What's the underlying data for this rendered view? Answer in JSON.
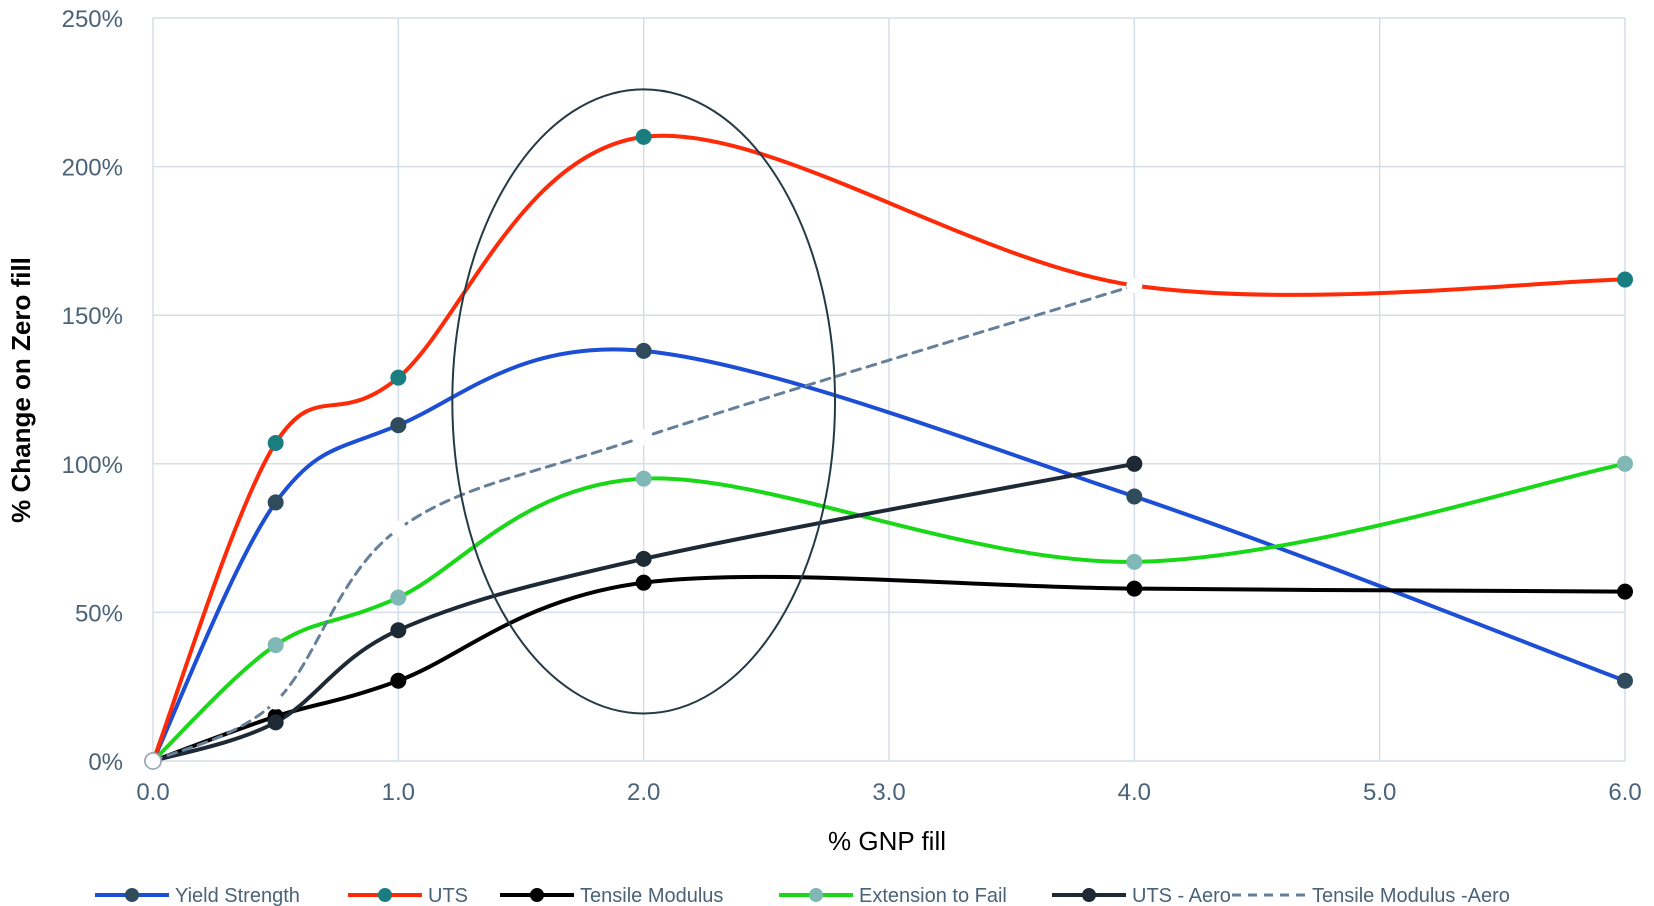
{
  "chart_data": {
    "type": "line",
    "title": "",
    "xlabel": "% GNP fill",
    "ylabel": "% Change on Zero fill",
    "xlim": [
      0,
      6
    ],
    "ylim": [
      0,
      250
    ],
    "x_ticks": [
      "0.0",
      "1.0",
      "2.0",
      "3.0",
      "4.0",
      "5.0",
      "6.0"
    ],
    "y_ticks": [
      "0%",
      "50%",
      "100%",
      "150%",
      "200%",
      "250%"
    ],
    "grid": true,
    "smooth": true,
    "legend_position": "bottom",
    "series": [
      {
        "name": "Yield Strength",
        "line_color": "#1c4fd6",
        "marker_color": "#2f4b5c",
        "dashed": false,
        "points": [
          [
            0,
            0
          ],
          [
            0.5,
            87
          ],
          [
            1,
            113
          ],
          [
            2,
            138
          ],
          [
            4,
            89
          ],
          [
            6,
            27
          ]
        ]
      },
      {
        "name": "UTS",
        "line_color": "#ff2a08",
        "marker_color": "#1a7e80",
        "dashed": false,
        "points": [
          [
            0,
            0
          ],
          [
            0.5,
            107
          ],
          [
            1,
            129
          ],
          [
            2,
            210
          ],
          [
            4,
            160
          ],
          [
            6,
            162
          ]
        ]
      },
      {
        "name": "Tensile Modulus",
        "line_color": "#000000",
        "marker_color": "#000000",
        "dashed": false,
        "points": [
          [
            0,
            0
          ],
          [
            0.5,
            15
          ],
          [
            1,
            27
          ],
          [
            2,
            60
          ],
          [
            4,
            58
          ],
          [
            6,
            57
          ]
        ]
      },
      {
        "name": "Extension to Fail",
        "line_color": "#18d818",
        "marker_color": "#7fb8b4",
        "dashed": false,
        "points": [
          [
            0,
            0
          ],
          [
            0.5,
            39
          ],
          [
            1,
            55
          ],
          [
            2,
            95
          ],
          [
            4,
            67
          ],
          [
            6,
            100
          ]
        ]
      },
      {
        "name": "UTS - Aero",
        "line_color": "#1d2a36",
        "marker_color": "#1d2a36",
        "dashed": false,
        "points": [
          [
            0,
            0
          ],
          [
            0.5,
            13
          ],
          [
            1,
            44
          ],
          [
            2,
            68
          ],
          [
            4,
            100
          ]
        ]
      },
      {
        "name": "Tensile Modulus -Aero",
        "line_color": "#66809a",
        "marker_color": "#ffffff",
        "dashed": true,
        "points": [
          [
            0,
            0
          ],
          [
            0.5,
            20
          ],
          [
            1,
            78
          ],
          [
            2,
            109
          ],
          [
            4,
            160
          ]
        ]
      }
    ],
    "annotation": {
      "shape": "ellipse",
      "center": [
        2.0,
        121
      ],
      "half_width_x": 0.78,
      "half_height_y": 105,
      "color": "#243b45"
    }
  }
}
